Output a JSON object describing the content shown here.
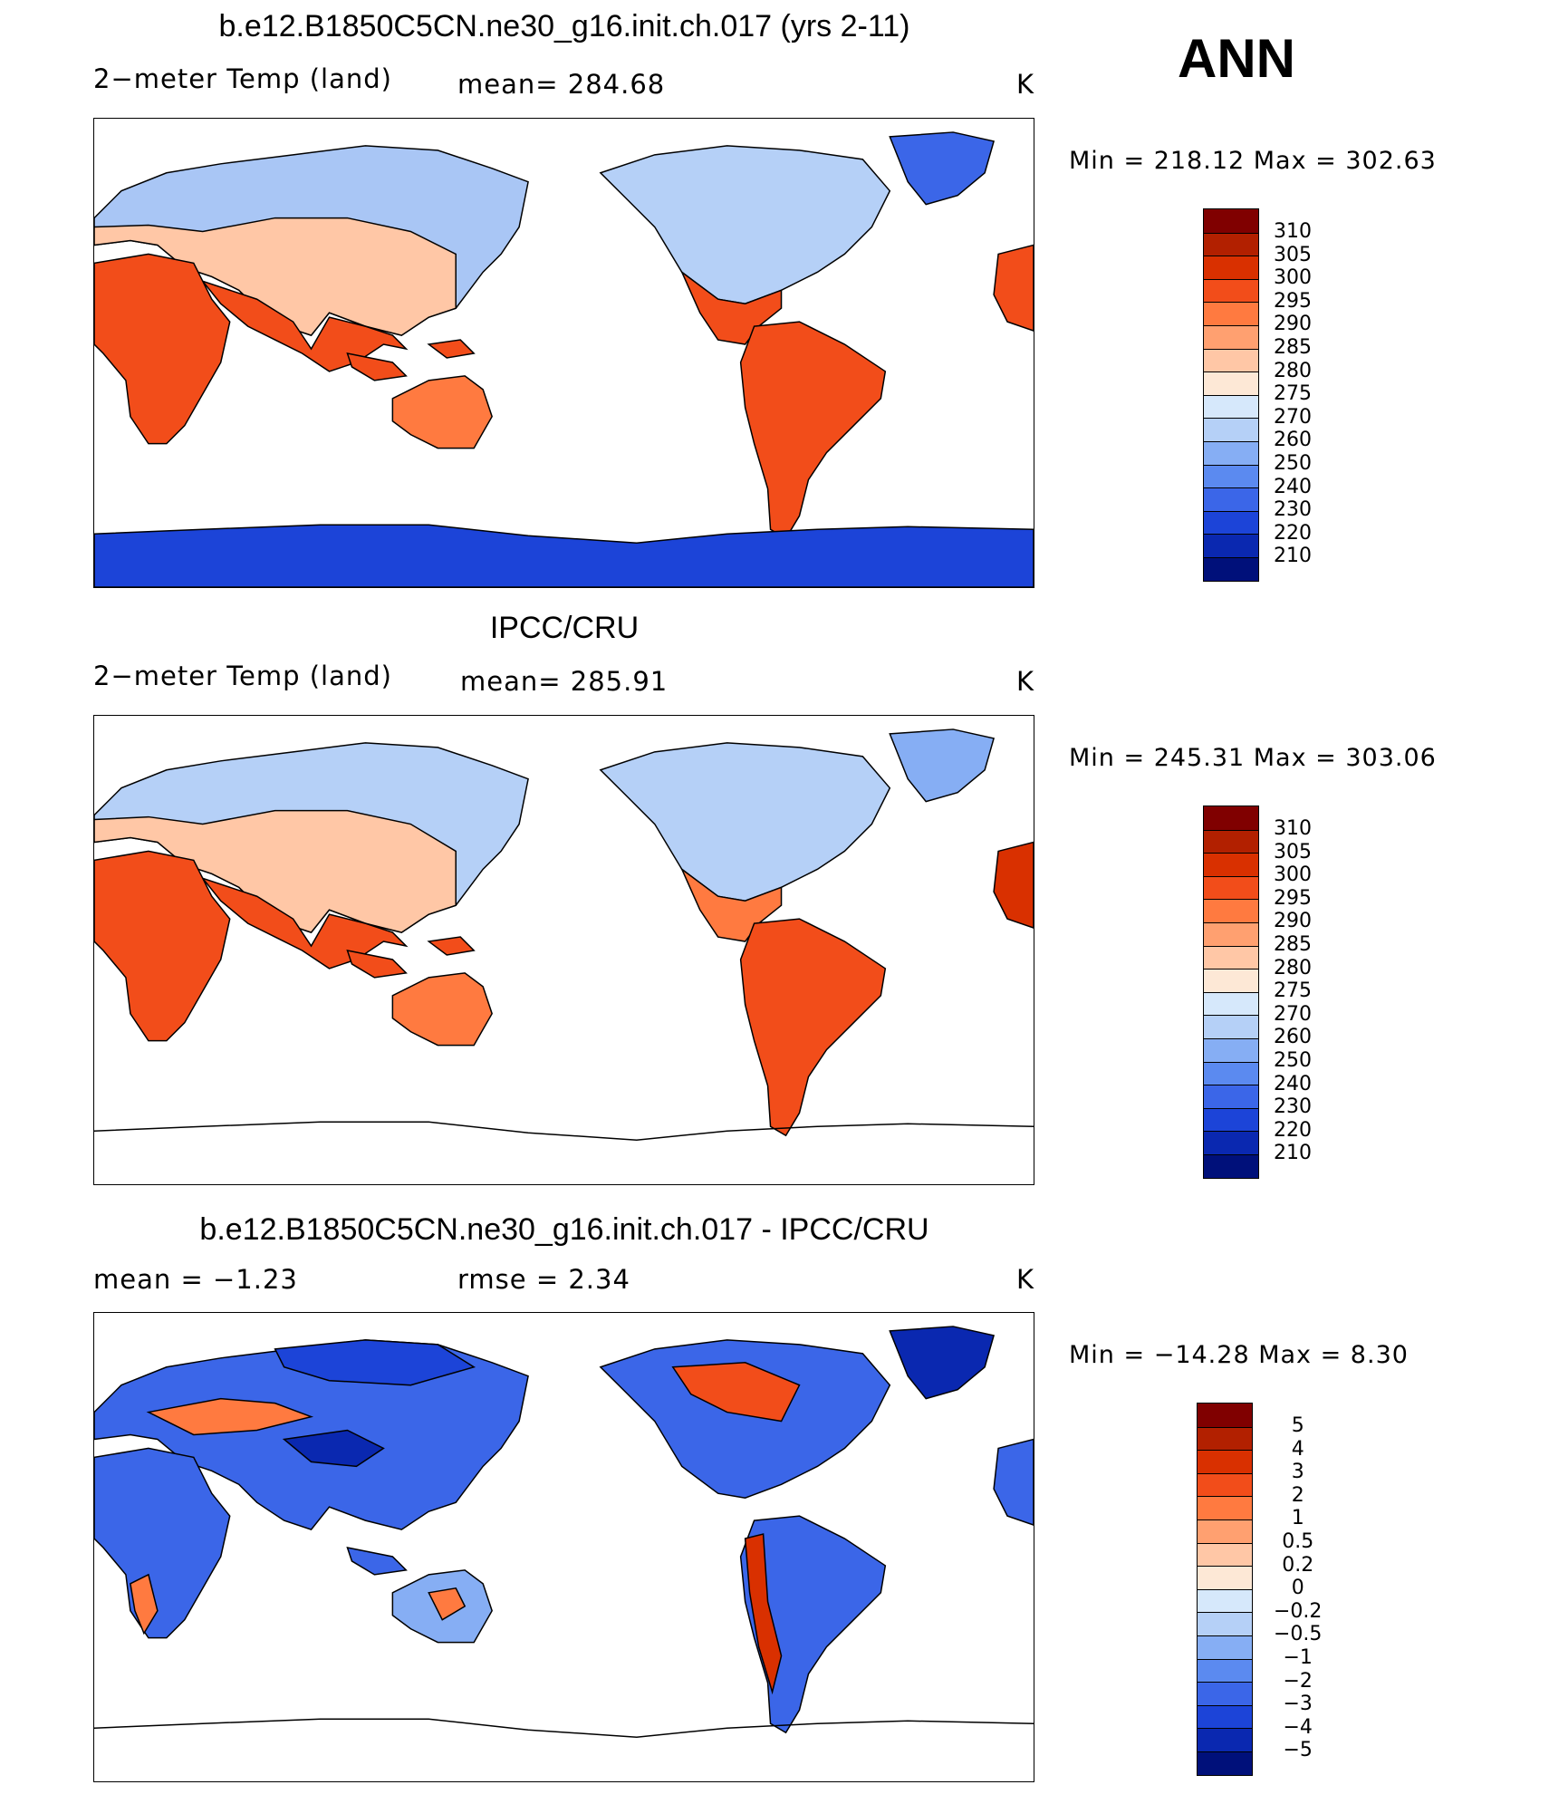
{
  "season": "ANN",
  "panels": [
    {
      "title": "b.e12.B1850C5CN.ne30_g16.init.ch.017 (yrs 2-11)",
      "left_label": "2−meter Temp (land)",
      "center_label": "mean=  284.68",
      "units": "K",
      "minmax": "Min  =  218.12  Max  =  302.63",
      "colorbar": {
        "levels": [
          "310",
          "305",
          "300",
          "295",
          "290",
          "285",
          "280",
          "275",
          "270",
          "260",
          "250",
          "240",
          "230",
          "220",
          "210"
        ],
        "colors": [
          "#800000",
          "#b22000",
          "#d93000",
          "#f24d1a",
          "#ff7a40",
          "#ffa070",
          "#ffc7a6",
          "#fde8d6",
          "#d6e8fb",
          "#b5d0f7",
          "#86aef4",
          "#5b8af0",
          "#3b66e8",
          "#1c44d8",
          "#0a28b0",
          "#00107a"
        ]
      },
      "map_fill": "model"
    },
    {
      "title": "IPCC/CRU",
      "left_label": "2−meter Temp (land)",
      "center_label": "mean=  285.91",
      "units": "K",
      "minmax": "Min  =  245.31  Max  =  303.06",
      "colorbar": {
        "levels": [
          "310",
          "305",
          "300",
          "295",
          "290",
          "285",
          "280",
          "275",
          "270",
          "260",
          "250",
          "240",
          "230",
          "220",
          "210"
        ],
        "colors": [
          "#800000",
          "#b22000",
          "#d93000",
          "#f24d1a",
          "#ff7a40",
          "#ffa070",
          "#ffc7a6",
          "#fde8d6",
          "#d6e8fb",
          "#b5d0f7",
          "#86aef4",
          "#5b8af0",
          "#3b66e8",
          "#1c44d8",
          "#0a28b0",
          "#00107a"
        ]
      },
      "map_fill": "obs"
    },
    {
      "title": "b.e12.B1850C5CN.ne30_g16.init.ch.017 - IPCC/CRU",
      "left_label": "mean =    −1.23",
      "center_label": "rmse =     2.34",
      "units": "K",
      "minmax": "Min  =  −14.28  Max  =      8.30",
      "colorbar": {
        "levels": [
          "5",
          "4",
          "3",
          "2",
          "1",
          "0.5",
          "0.2",
          "0",
          "−0.2",
          "−0.5",
          "−1",
          "−2",
          "−3",
          "−4",
          "−5"
        ],
        "colors": [
          "#800000",
          "#b22000",
          "#d93000",
          "#f24d1a",
          "#ff7a40",
          "#ffa070",
          "#ffc7a6",
          "#fde8d6",
          "#d6e8fb",
          "#b5d0f7",
          "#86aef4",
          "#5b8af0",
          "#3b66e8",
          "#1c44d8",
          "#0a28b0",
          "#00107a"
        ]
      },
      "map_fill": "diff"
    }
  ]
}
